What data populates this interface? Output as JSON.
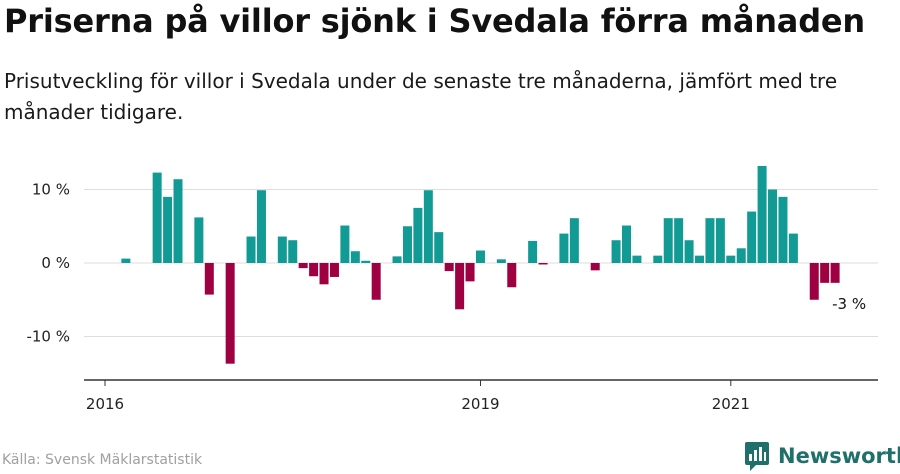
{
  "header": {
    "title": "Priserna på villor sjönk i Svedala förra månaden",
    "subtitle": "Prisutveckling för villor i Svedala under de senaste tre månaderna, jämfört med tre månader tidigare."
  },
  "footer": {
    "source": "Källa: Svensk Mäklarstatistik",
    "brand": "Newsworthy"
  },
  "colors": {
    "positive": "#129a94",
    "negative": "#9e0042",
    "grid": "#dddddd",
    "axis": "#333333",
    "brand": "#1f6f6a"
  },
  "chart_data": {
    "type": "bar",
    "title": "Priserna på villor sjönk i Svedala förra månaden",
    "xlabel": "",
    "ylabel": "",
    "unit": "%",
    "ylim": [
      -15,
      16
    ],
    "y_ticks": [
      {
        "value": -10,
        "label": "-10 %"
      },
      {
        "value": 0,
        "label": "0 %"
      },
      {
        "value": 10,
        "label": "10 %"
      }
    ],
    "x_ticks": [
      {
        "index": 0,
        "label": "2016"
      },
      {
        "index": 36,
        "label": "2019"
      },
      {
        "index": 60,
        "label": "2021"
      }
    ],
    "annotation": {
      "index": 70,
      "label": "-3 %"
    },
    "grid": true,
    "values": [
      null,
      0,
      0.6,
      0,
      0,
      12.3,
      9,
      11.4,
      0,
      6.2,
      -4.3,
      0,
      -13.7,
      0,
      3.6,
      9.9,
      0,
      3.6,
      3.1,
      -0.7,
      -1.8,
      -2.9,
      -1.9,
      5.1,
      1.6,
      0.3,
      -5,
      0,
      0.9,
      5,
      7.5,
      9.9,
      4.2,
      -1.1,
      -6.3,
      -2.5,
      1.7,
      0,
      0.5,
      -3.3,
      0,
      3,
      -0.2,
      0,
      4,
      6.1,
      0,
      -1,
      0,
      3.1,
      5.1,
      1,
      0,
      1,
      6.1,
      6.1,
      3.1,
      1,
      6.1,
      6.1,
      1,
      2,
      7,
      13.2,
      10,
      9,
      4,
      0,
      -5,
      -2.7,
      -2.7
    ]
  }
}
